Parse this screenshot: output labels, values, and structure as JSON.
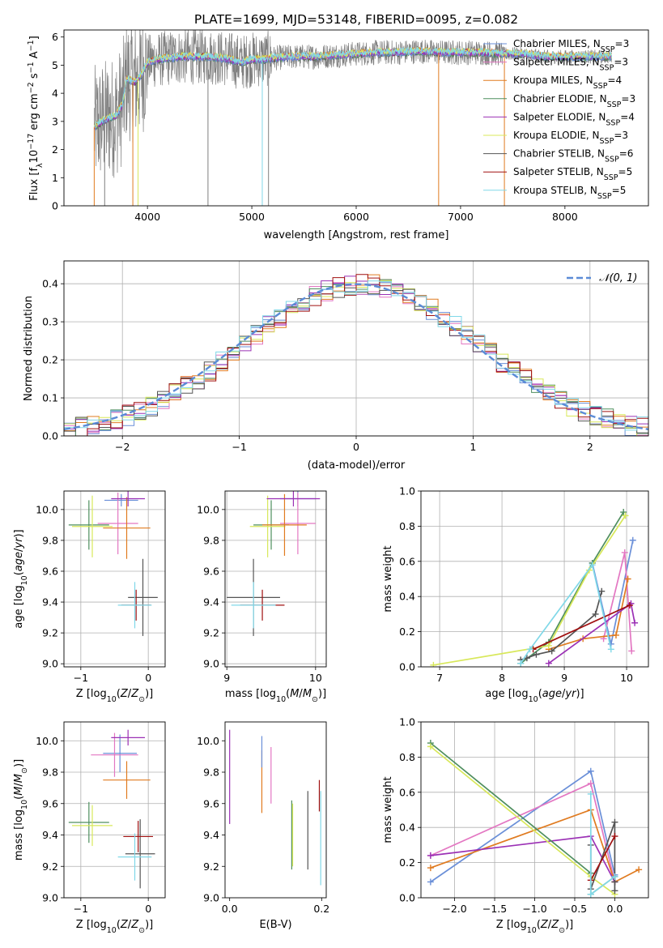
{
  "figure": {
    "title": "PLATE=1699, MJD=53148, FIBERID=0095, z=0.082"
  },
  "chart_data": [
    {
      "id": "spectrum",
      "type": "line",
      "title": "PLATE=1699, MJD=53148, FIBERID=0095, z=0.082",
      "xlabel": "wavelength [Angstrom, rest frame]",
      "ylabel": "Flux [f_λ10^-17 erg cm^-2 s^-1 A^-1]",
      "xlim": [
        3200,
        8800
      ],
      "ylim": [
        0,
        6.25
      ],
      "xticks": [
        4000,
        5000,
        6000,
        7000,
        8000
      ],
      "yticks": [
        0,
        1,
        2,
        3,
        4,
        5,
        6
      ],
      "legend_position": "right",
      "data_range": [
        3490,
        8450
      ],
      "continuum": {
        "x": [
          3490,
          3560,
          3620,
          3700,
          3760,
          3800,
          3880,
          3950,
          4000,
          4100,
          4200,
          4300,
          4400,
          4500,
          4600,
          4700,
          4800,
          4900,
          5000,
          5100,
          5200,
          5400,
          5600,
          5800,
          6000,
          6200,
          6400,
          6600,
          6800,
          7000,
          7200,
          7400,
          7600,
          7800,
          8000,
          8200,
          8450
        ],
        "y": [
          2.8,
          3.0,
          3.1,
          3.2,
          3.6,
          4.5,
          4.4,
          4.7,
          5.1,
          5.2,
          5.25,
          5.3,
          5.3,
          5.3,
          5.3,
          5.25,
          5.2,
          5.1,
          5.2,
          5.2,
          5.25,
          5.3,
          5.3,
          5.35,
          5.4,
          5.45,
          5.45,
          5.5,
          5.45,
          5.45,
          5.45,
          5.4,
          5.4,
          5.3,
          5.3,
          5.3,
          5.3
        ]
      },
      "series": [
        {
          "name": "Chabrier MILES, N_SSP=3",
          "color": "#6a8fd8"
        },
        {
          "name": "Salpeter MILES, N_SSP=3",
          "color": "#e377c2"
        },
        {
          "name": "Kroupa MILES, N_SSP=4",
          "color": "#e07b20"
        },
        {
          "name": "Chabrier ELODIE, N_SSP=3",
          "color": "#4f8f5f"
        },
        {
          "name": "Salpeter ELODIE, N_SSP=4",
          "color": "#9b30b5"
        },
        {
          "name": "Kroupa ELODIE, N_SSP=3",
          "color": "#d8e85a"
        },
        {
          "name": "Chabrier STELIB, N_SSP=6",
          "color": "#555555"
        },
        {
          "name": "Salpeter STELIB, N_SSP=5",
          "color": "#a01010"
        },
        {
          "name": "Kroupa STELIB, N_SSP=5",
          "color": "#80d8e8"
        }
      ],
      "legend_labels": [
        [
          "Chabrier MILES, N",
          "SSP",
          "=3"
        ],
        [
          "Salpeter MILES, N",
          "SSP",
          "=3"
        ],
        [
          "Kroupa MILES, N",
          "SSP",
          "=4"
        ],
        [
          "Chabrier ELODIE, N",
          "SSP",
          "=3"
        ],
        [
          "Salpeter ELODIE, N",
          "SSP",
          "=4"
        ],
        [
          "Kroupa ELODIE, N",
          "SSP",
          "=3"
        ],
        [
          "Chabrier STELIB, N",
          "SSP",
          "=6"
        ],
        [
          "Salpeter STELIB, N",
          "SSP",
          "=5"
        ],
        [
          "Kroupa STELIB, N",
          "SSP",
          "=5"
        ]
      ]
    },
    {
      "id": "residuals",
      "type": "line",
      "xlabel": "(data-model)/error",
      "ylabel": "Normed distribution",
      "xlim": [
        -2.5,
        2.5
      ],
      "ylim": [
        0,
        0.46
      ],
      "xticks": [
        -2,
        -1,
        0,
        1,
        2
      ],
      "yticks": [
        0.0,
        0.1,
        0.2,
        0.3,
        0.4
      ],
      "grid": true,
      "legend_position": "top-right",
      "bin_width": 0.1,
      "reference_curve": {
        "name": "𝒩(0, 1)",
        "color": "#5b8bd6",
        "style": "dashed"
      }
    },
    {
      "id": "age_vs_Z",
      "type": "scatter",
      "xlabel": "Z [log10(Z/Z⊙)]",
      "ylabel": "age  [log10(age/yr)]",
      "xlim": [
        -1.25,
        0.25
      ],
      "ylim": [
        8.98,
        10.12
      ],
      "xticks": [
        -1,
        0
      ],
      "yticks": [
        9.0,
        9.2,
        9.4,
        9.6,
        9.8,
        10.0
      ],
      "grid": true,
      "points": [
        {
          "x": -0.88,
          "y": 9.9,
          "xerr": 0.3,
          "yerr": 0.16,
          "color": "#4f8f5f"
        },
        {
          "x": -0.83,
          "y": 9.89,
          "xerr": 0.3,
          "yerr": 0.2,
          "color": "#d8e85a"
        },
        {
          "x": -0.4,
          "y": 10.06,
          "xerr": 0.25,
          "yerr": 0.04,
          "color": "#6a8fd8"
        },
        {
          "x": -0.45,
          "y": 9.91,
          "xerr": 0.3,
          "yerr": 0.2,
          "color": "#e377c2"
        },
        {
          "x": -0.32,
          "y": 9.88,
          "xerr": 0.35,
          "yerr": 0.2,
          "color": "#e07b20"
        },
        {
          "x": -0.3,
          "y": 10.07,
          "xerr": 0.25,
          "yerr": 0.05,
          "color": "#9b30b5"
        },
        {
          "x": -0.08,
          "y": 9.43,
          "xerr": 0.22,
          "yerr": 0.25,
          "color": "#555555"
        },
        {
          "x": -0.18,
          "y": 9.38,
          "xerr": 0.22,
          "yerr": 0.1,
          "color": "#a01010"
        },
        {
          "x": -0.2,
          "y": 9.38,
          "xerr": 0.25,
          "yerr": 0.15,
          "color": "#80d8e8"
        }
      ]
    },
    {
      "id": "age_vs_mass",
      "type": "scatter",
      "xlabel": "mass [log10(M/M⊙)]",
      "ylabel": "",
      "xlim": [
        8.98,
        10.12
      ],
      "ylim": [
        8.98,
        10.12
      ],
      "xticks": [
        9,
        10
      ],
      "yticks": [
        9.0,
        9.2,
        9.4,
        9.6,
        9.8,
        10.0
      ],
      "grid": true,
      "points": [
        {
          "x": 9.5,
          "y": 9.9,
          "xerr": 0.2,
          "yerr": 0.16,
          "color": "#4f8f5f"
        },
        {
          "x": 9.46,
          "y": 9.89,
          "xerr": 0.2,
          "yerr": 0.2,
          "color": "#d8e85a"
        },
        {
          "x": 9.8,
          "y": 10.07,
          "xerr": 0.2,
          "yerr": 0.05,
          "color": "#6a8fd8"
        },
        {
          "x": 9.8,
          "y": 9.91,
          "xerr": 0.2,
          "yerr": 0.2,
          "color": "#e377c2"
        },
        {
          "x": 9.65,
          "y": 9.9,
          "xerr": 0.25,
          "yerr": 0.2,
          "color": "#e07b20"
        },
        {
          "x": 9.75,
          "y": 10.07,
          "xerr": 0.3,
          "yerr": 0.05,
          "color": "#9b30b5"
        },
        {
          "x": 9.3,
          "y": 9.43,
          "xerr": 0.3,
          "yerr": 0.25,
          "color": "#555555"
        },
        {
          "x": 9.4,
          "y": 9.38,
          "xerr": 0.25,
          "yerr": 0.1,
          "color": "#a01010"
        },
        {
          "x": 9.3,
          "y": 9.38,
          "xerr": 0.25,
          "yerr": 0.15,
          "color": "#80d8e8"
        }
      ]
    },
    {
      "id": "weight_vs_age",
      "type": "line",
      "xlabel": "age  [log10(age/yr)]",
      "ylabel": "mass weight",
      "xlim": [
        6.7,
        10.35
      ],
      "ylim": [
        0,
        1.0
      ],
      "xticks": [
        7,
        8,
        9,
        10
      ],
      "yticks": [
        0.0,
        0.2,
        0.4,
        0.6,
        0.8,
        1.0
      ],
      "grid": true,
      "series": [
        {
          "color": "#6a8fd8",
          "x": [
            9.45,
            9.75,
            10.1
          ],
          "y": [
            0.59,
            0.13,
            0.72
          ]
        },
        {
          "color": "#e377c2",
          "x": [
            9.63,
            9.97,
            10.08
          ],
          "y": [
            0.16,
            0.65,
            0.09
          ]
        },
        {
          "color": "#e07b20",
          "x": [
            8.75,
            9.3,
            9.83,
            10.02
          ],
          "y": [
            0.1,
            0.16,
            0.18,
            0.5
          ]
        },
        {
          "color": "#9b30b5",
          "x": [
            8.75,
            10.07,
            10.13
          ],
          "y": [
            0.02,
            0.36,
            0.25
          ]
        },
        {
          "color": "#4f8f5f",
          "x": [
            8.3,
            8.75,
            9.45,
            9.95
          ],
          "y": [
            0.02,
            0.14,
            0.59,
            0.88
          ]
        },
        {
          "color": "#d8e85a",
          "x": [
            6.9,
            8.75,
            9.4,
            9.98
          ],
          "y": [
            0.01,
            0.12,
            0.55,
            0.86
          ]
        },
        {
          "color": "#555555",
          "x": [
            8.3,
            8.4,
            8.55,
            8.8,
            9.5,
            9.6
          ],
          "y": [
            0.04,
            0.05,
            0.07,
            0.09,
            0.3,
            0.43
          ]
        },
        {
          "color": "#a01010",
          "x": [
            8.5,
            10.05
          ],
          "y": [
            0.1,
            0.35
          ]
        },
        {
          "color": "#80d8e8",
          "x": [
            8.3,
            8.45,
            9.45,
            9.75
          ],
          "y": [
            0.02,
            0.1,
            0.58,
            0.1
          ]
        }
      ]
    },
    {
      "id": "mass_vs_Z",
      "type": "scatter",
      "xlabel": "Z [log10(Z/Z⊙)]",
      "ylabel": "mass [log10(M/M⊙)]",
      "xlim": [
        -1.25,
        0.25
      ],
      "ylim": [
        9.0,
        10.12
      ],
      "xticks": [
        -1,
        0
      ],
      "yticks": [
        9.0,
        9.2,
        9.4,
        9.6,
        9.8,
        10.0
      ],
      "grid": true,
      "points": [
        {
          "x": -0.88,
          "y": 9.48,
          "xerr": 0.3,
          "yerr": 0.13,
          "color": "#4f8f5f"
        },
        {
          "x": -0.83,
          "y": 9.46,
          "xerr": 0.3,
          "yerr": 0.13,
          "color": "#d8e85a"
        },
        {
          "x": -0.42,
          "y": 9.92,
          "xerr": 0.25,
          "yerr": 0.12,
          "color": "#6a8fd8"
        },
        {
          "x": -0.5,
          "y": 9.91,
          "xerr": 0.35,
          "yerr": 0.14,
          "color": "#e377c2"
        },
        {
          "x": -0.32,
          "y": 9.75,
          "xerr": 0.35,
          "yerr": 0.12,
          "color": "#e07b20"
        },
        {
          "x": -0.3,
          "y": 10.02,
          "xerr": 0.25,
          "yerr": 0.05,
          "color": "#9b30b5"
        },
        {
          "x": -0.12,
          "y": 9.28,
          "xerr": 0.22,
          "yerr": 0.22,
          "color": "#555555"
        },
        {
          "x": -0.15,
          "y": 9.39,
          "xerr": 0.22,
          "yerr": 0.1,
          "color": "#a01010"
        },
        {
          "x": -0.2,
          "y": 9.26,
          "xerr": 0.25,
          "yerr": 0.15,
          "color": "#80d8e8"
        }
      ]
    },
    {
      "id": "mass_vs_ebv",
      "type": "scatter",
      "xlabel": "E(B-V)",
      "ylabel": "",
      "xlim": [
        -0.01,
        0.21
      ],
      "ylim": [
        9.0,
        10.12
      ],
      "xticks": [
        0.0,
        0.2
      ],
      "yticks": [
        9.0,
        9.2,
        9.4,
        9.6,
        9.8,
        10.0
      ],
      "grid": false,
      "points": [
        {
          "x": 0.0,
          "y": 9.77,
          "yerr": 0.3,
          "color": "#9b30b5"
        },
        {
          "x": 0.07,
          "y": 9.74,
          "yerr": 0.2,
          "color": "#e07b20"
        },
        {
          "x": 0.07,
          "y": 9.93,
          "yerr": 0.1,
          "color": "#6a8fd8"
        },
        {
          "x": 0.09,
          "y": 9.78,
          "yerr": 0.18,
          "color": "#e377c2"
        },
        {
          "x": 0.135,
          "y": 9.4,
          "yerr": 0.22,
          "color": "#4f8f5f"
        },
        {
          "x": 0.137,
          "y": 9.4,
          "yerr": 0.2,
          "color": "#d8e85a"
        },
        {
          "x": 0.17,
          "y": 9.43,
          "yerr": 0.25,
          "color": "#555555"
        },
        {
          "x": 0.195,
          "y": 9.65,
          "yerr": 0.1,
          "color": "#a01010"
        },
        {
          "x": 0.198,
          "y": 9.38,
          "yerr": 0.3,
          "color": "#80d8e8"
        }
      ]
    },
    {
      "id": "weight_vs_Z",
      "type": "line",
      "xlabel": "Z [log10(Z/Z⊙)]",
      "ylabel": "mass weight",
      "xlim": [
        -2.42,
        0.42
      ],
      "ylim": [
        0,
        1.0
      ],
      "xticks": [
        -2.0,
        -1.5,
        -1.0,
        -0.5,
        0.0
      ],
      "yticks": [
        0.0,
        0.2,
        0.4,
        0.6,
        0.8,
        1.0
      ],
      "grid": true,
      "series": [
        {
          "color": "#6a8fd8",
          "x": [
            -2.3,
            -0.3,
            0.0
          ],
          "y": [
            0.09,
            0.72,
            0.13
          ]
        },
        {
          "color": "#e377c2",
          "x": [
            -2.3,
            -0.3,
            0.0
          ],
          "y": [
            0.24,
            0.65,
            0.09
          ]
        },
        {
          "color": "#e07b20",
          "x": [
            -2.3,
            -0.3,
            0.0,
            0.3
          ],
          "y": [
            0.17,
            0.5,
            0.09,
            0.16
          ]
        },
        {
          "color": "#9b30b5",
          "x": [
            -2.3,
            -0.3,
            0.0
          ],
          "y": [
            0.24,
            0.35,
            0.09
          ]
        },
        {
          "color": "#4f8f5f",
          "x": [
            -2.3,
            -0.3,
            -0.3,
            0.0
          ],
          "y": [
            0.88,
            0.14,
            0.02,
            0.12
          ]
        },
        {
          "color": "#d8e85a",
          "x": [
            -2.3,
            -0.3,
            0.0
          ],
          "y": [
            0.86,
            0.12,
            0.02
          ]
        },
        {
          "color": "#555555",
          "x": [
            -0.3,
            -0.3,
            0.0,
            0.0,
            0.0
          ],
          "y": [
            0.3,
            0.05,
            0.43,
            0.09,
            0.04
          ]
        },
        {
          "color": "#a01010",
          "x": [
            -0.3,
            0.0
          ],
          "y": [
            0.1,
            0.35
          ]
        },
        {
          "color": "#80d8e8",
          "x": [
            -0.3,
            -0.3,
            0.0
          ],
          "y": [
            0.59,
            0.02,
            0.12
          ]
        }
      ]
    }
  ]
}
